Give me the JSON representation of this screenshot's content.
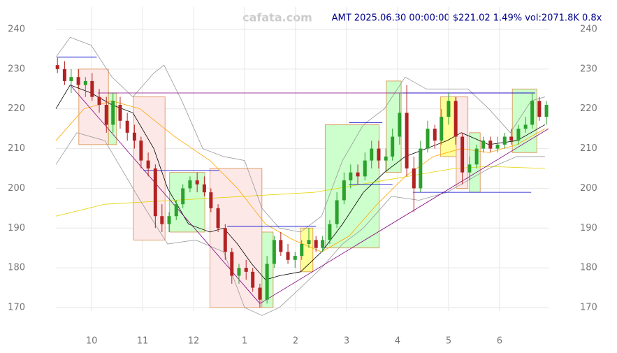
{
  "chart_data": {
    "type": "candlestick",
    "title": "AMT 2025.06.30 00:00:00 $221.02 1.49% vol:2071.8K 0.8x",
    "watermark": "cafata.com",
    "xlim": [
      9.3,
      18.96
    ],
    "ylim": [
      170,
      240
    ],
    "xticks": [
      10,
      11,
      12,
      {
        "value": 13,
        "label": "1"
      },
      {
        "value": 14,
        "label": "2"
      },
      {
        "value": 15,
        "label": "3"
      },
      {
        "value": 16,
        "label": "4"
      },
      {
        "value": 17,
        "label": "5"
      },
      {
        "value": 18,
        "label": "6"
      }
    ],
    "yticks": [
      170,
      180,
      190,
      200,
      210,
      220,
      230,
      240
    ],
    "grid": true,
    "up_color": "#2ca02c",
    "down_color": "#b22222",
    "candles": {
      "x": [
        9.33,
        9.47,
        9.6,
        9.74,
        9.88,
        10.01,
        10.15,
        10.29,
        10.42,
        10.56,
        10.7,
        10.84,
        10.97,
        11.11,
        11.25,
        11.38,
        11.52,
        11.66,
        11.79,
        11.93,
        12.07,
        12.21,
        12.34,
        12.48,
        12.62,
        12.75,
        12.89,
        13.03,
        13.16,
        13.3,
        13.44,
        13.58,
        13.71,
        13.85,
        13.99,
        14.12,
        14.26,
        14.4,
        14.53,
        14.67,
        14.81,
        14.95,
        15.08,
        15.22,
        15.36,
        15.49,
        15.63,
        15.77,
        15.9,
        16.04,
        16.18,
        16.32,
        16.45,
        16.59,
        16.73,
        16.86,
        17.0,
        17.14,
        17.27,
        17.41,
        17.55,
        17.68,
        17.82,
        17.96,
        18.1,
        18.23,
        18.37,
        18.51,
        18.64,
        18.78,
        18.92
      ],
      "open": [
        231,
        230,
        227,
        228,
        226,
        227,
        223,
        221,
        216,
        221,
        217,
        214,
        212,
        207,
        205,
        193,
        191,
        193,
        196,
        200,
        202,
        201,
        199,
        195,
        190,
        184,
        178,
        180,
        179,
        175,
        172,
        181,
        187,
        184,
        182,
        183,
        186,
        187,
        185,
        187,
        191,
        197,
        202,
        204,
        203,
        207,
        210,
        207,
        208,
        213,
        219,
        205,
        200,
        210,
        215,
        212,
        218,
        222,
        213,
        204,
        206,
        210,
        212,
        210,
        211,
        213,
        212,
        215,
        216,
        222,
        218
      ],
      "high": [
        233,
        232,
        230,
        230,
        228,
        229,
        225,
        223,
        224,
        223,
        219,
        216,
        213,
        209,
        206,
        196,
        194,
        197,
        201,
        203,
        204,
        203,
        200,
        196,
        191,
        185,
        181,
        182,
        180,
        176,
        183,
        188,
        189,
        186,
        184,
        187,
        190,
        188,
        188,
        192,
        199,
        204,
        206,
        206,
        209,
        212,
        212,
        210,
        215,
        224,
        226,
        208,
        212,
        217,
        216,
        220,
        224,
        223,
        214,
        208,
        211,
        213,
        213,
        213,
        214,
        215,
        216,
        218,
        224,
        223,
        222
      ],
      "low": [
        229,
        226,
        224,
        225,
        223,
        222,
        219,
        214,
        214,
        215,
        212,
        210,
        205,
        203,
        190,
        189,
        189,
        192,
        195,
        199,
        199,
        198,
        194,
        189,
        182,
        176,
        176,
        177,
        174,
        170,
        171,
        180,
        183,
        181,
        180,
        182,
        185,
        184,
        184,
        186,
        190,
        196,
        200,
        201,
        202,
        205,
        205,
        204,
        207,
        211,
        203,
        194,
        199,
        209,
        210,
        211,
        216,
        211,
        201,
        202,
        205,
        209,
        209,
        209,
        210,
        211,
        211,
        214,
        215,
        217,
        216
      ],
      "close": [
        230,
        227,
        228,
        226,
        227,
        223,
        221,
        216,
        222,
        217,
        214,
        212,
        207,
        205,
        193,
        191,
        193,
        196,
        200,
        202,
        201,
        199,
        195,
        190,
        184,
        178,
        180,
        179,
        175,
        172,
        181,
        187,
        184,
        182,
        183,
        186,
        187,
        185,
        187,
        191,
        197,
        202,
        204,
        203,
        207,
        210,
        207,
        208,
        213,
        219,
        205,
        200,
        210,
        215,
        212,
        218,
        222,
        213,
        204,
        206,
        210,
        212,
        210,
        211,
        213,
        212,
        215,
        216,
        222,
        218,
        221
      ]
    },
    "lines": [
      {
        "color": "#000000",
        "x": [
          9.3,
          9.58,
          9.99,
          10.4,
          10.81,
          11.22,
          11.49,
          11.9,
          12.32,
          12.59,
          12.86,
          13.14,
          13.41,
          13.68,
          14.1,
          14.51,
          14.92,
          15.33,
          15.74,
          16.15,
          16.56,
          16.97,
          17.25,
          17.79,
          18.34,
          18.89
        ],
        "values": [
          220,
          226,
          224,
          221,
          219,
          210,
          200,
          191,
          189,
          190,
          186,
          181,
          177,
          178,
          179,
          184,
          191,
          199,
          204,
          208,
          210,
          212,
          214,
          211,
          212,
          216
        ]
      },
      {
        "color": "#ffa500",
        "x": [
          9.3,
          9.85,
          10.4,
          10.95,
          11.63,
          12.32,
          12.86,
          13.41,
          13.96,
          14.51,
          15.05,
          15.6,
          16.15,
          16.7,
          17.25,
          17.79,
          18.34,
          18.89
        ],
        "values": [
          212,
          220,
          222,
          220,
          213,
          207,
          200,
          191,
          187,
          184,
          188,
          196,
          203,
          208,
          210,
          209,
          211,
          215
        ]
      },
      {
        "color": "#e6d200",
        "x": [
          9.3,
          10.26,
          11.63,
          13.0,
          14.37,
          15.74,
          17.11,
          17.79,
          18.89
        ],
        "values": [
          193,
          196,
          197,
          198,
          199,
          202,
          205,
          205.5,
          205
        ]
      },
      {
        "color": "#999999",
        "x": [
          9.3,
          9.58,
          9.99,
          10.4,
          10.81,
          11.22,
          11.42,
          11.77,
          12.18,
          12.59,
          13.0,
          13.34,
          13.68,
          14.1,
          14.51,
          14.92,
          15.33,
          15.74,
          16.15,
          16.56,
          16.97,
          17.38,
          17.79,
          18.21,
          18.62,
          18.89
        ],
        "values": [
          233,
          238,
          236,
          228,
          223,
          229,
          231,
          222,
          210,
          208,
          207,
          195,
          190,
          189,
          193,
          207,
          216,
          220,
          228,
          225,
          225,
          225,
          220,
          214,
          222,
          223
        ]
      },
      {
        "color": "#999999",
        "x": [
          9.3,
          9.71,
          10.26,
          10.95,
          11.49,
          12.04,
          12.59,
          13.0,
          13.34,
          13.68,
          14.1,
          14.51,
          14.92,
          15.33,
          15.88,
          16.42,
          16.97,
          17.38,
          17.79,
          18.34,
          18.89
        ],
        "values": [
          206,
          214,
          212,
          197,
          186,
          187,
          184,
          170,
          168,
          170,
          175,
          180,
          186,
          190,
          198,
          197,
          199,
          202,
          205,
          208,
          208
        ]
      }
    ],
    "zones": [
      {
        "color": "#fde8e8",
        "x0": 9.75,
        "x1": 10.33,
        "y0": 211,
        "y1": 230
      },
      {
        "color": "#ccffcc",
        "x0": 10.33,
        "x1": 10.49,
        "y0": 211,
        "y1": 224
      },
      {
        "color": "#fde8e8",
        "x0": 10.82,
        "x1": 11.44,
        "y0": 187,
        "y1": 223
      },
      {
        "color": "#ccffcc",
        "x0": 11.53,
        "x1": 12.22,
        "y0": 189,
        "y1": 204
      },
      {
        "color": "#fde8e8",
        "x0": 12.32,
        "x1": 13.34,
        "y0": 170,
        "y1": 205
      },
      {
        "color": "#ccffcc",
        "x0": 13.34,
        "x1": 13.56,
        "y0": 170,
        "y1": 189
      },
      {
        "color": "#ffff99",
        "x0": 14.1,
        "x1": 14.34,
        "y0": 179,
        "y1": 190
      },
      {
        "color": "#ccffcc",
        "x0": 14.58,
        "x1": 15.64,
        "y0": 185,
        "y1": 216
      },
      {
        "color": "#ccffcc",
        "x0": 15.78,
        "x1": 16.07,
        "y0": 204,
        "y1": 227
      },
      {
        "color": "#ffff99",
        "x0": 16.84,
        "x1": 17.15,
        "y0": 208,
        "y1": 223
      },
      {
        "color": "#fde8e8",
        "x0": 17.15,
        "x1": 17.38,
        "y0": 200,
        "y1": 223
      },
      {
        "color": "#ccffcc",
        "x0": 17.41,
        "x1": 17.62,
        "y0": 199,
        "y1": 214
      },
      {
        "color": "#ccffcc",
        "x0": 18.25,
        "x1": 18.73,
        "y0": 209,
        "y1": 225
      }
    ],
    "segments": [
      {
        "color": "#800080",
        "x0": 9.58,
        "y0": 226,
        "x1": 13.3,
        "y1": 171
      },
      {
        "color": "#800080",
        "x0": 13.3,
        "y0": 171,
        "x1": 18.96,
        "y1": 215
      },
      {
        "color": "#800080",
        "x0": 10.12,
        "y0": 224,
        "x1": 18.7,
        "y1": 224
      },
      {
        "color": "#0000cc",
        "x0": 9.33,
        "y0": 233,
        "x1": 10.1,
        "y1": 233
      },
      {
        "color": "#0000cc",
        "x0": 16.1,
        "y0": 224,
        "x1": 18.7,
        "y1": 224
      },
      {
        "color": "#0000cc",
        "x0": 15.05,
        "y0": 216.5,
        "x1": 15.7,
        "y1": 216.5
      },
      {
        "color": "#0000cc",
        "x0": 15.05,
        "y0": 201,
        "x1": 15.9,
        "y1": 201
      },
      {
        "color": "#0000cc",
        "x0": 16.3,
        "y0": 199,
        "x1": 18.62,
        "y1": 199
      },
      {
        "color": "#0000cc",
        "x0": 12.66,
        "y0": 190.5,
        "x1": 14.4,
        "y1": 190.5
      },
      {
        "color": "#0000cc",
        "x0": 11.02,
        "y0": 204.5,
        "x1": 12.5,
        "y1": 204.5
      }
    ]
  }
}
